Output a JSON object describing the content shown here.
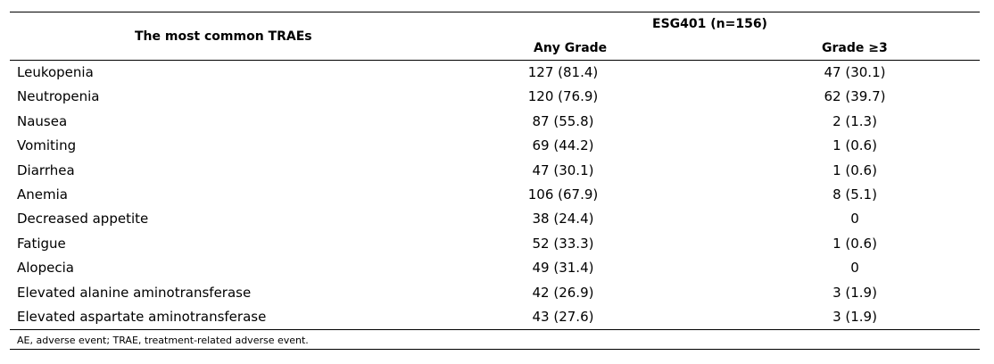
{
  "header": {
    "left_title": "The most common TRAEs",
    "group_label": "ESG401  (n=156)",
    "col_any": "Any Grade",
    "col_g3": "Grade ≥3"
  },
  "rows": [
    {
      "name": "Leukopenia",
      "any": "127 (81.4)",
      "g3": "47 (30.1)"
    },
    {
      "name": "Neutropenia",
      "any": "120 (76.9)",
      "g3": "62 (39.7)"
    },
    {
      "name": "Nausea",
      "any": "87 (55.8)",
      "g3": "2 (1.3)"
    },
    {
      "name": "Vomiting",
      "any": "69 (44.2)",
      "g3": "1 (0.6)"
    },
    {
      "name": "Diarrhea",
      "any": "47 (30.1)",
      "g3": "1 (0.6)"
    },
    {
      "name": "Anemia",
      "any": "106 (67.9)",
      "g3": "8 (5.1)"
    },
    {
      "name": "Decreased appetite",
      "any": "38 (24.4)",
      "g3": "0"
    },
    {
      "name": "Fatigue",
      "any": "52 (33.3)",
      "g3": "1 (0.6)"
    },
    {
      "name": "Alopecia",
      "any": "49 (31.4)",
      "g3": "0"
    },
    {
      "name": "Elevated alanine aminotransferase",
      "any": "42 (26.9)",
      "g3": "3 (1.9)"
    },
    {
      "name": "Elevated aspartate aminotransferase",
      "any": "43 (27.6)",
      "g3": "3 (1.9)"
    }
  ],
  "footnote": "AE, adverse event; TRAE, treatment-related adverse event."
}
